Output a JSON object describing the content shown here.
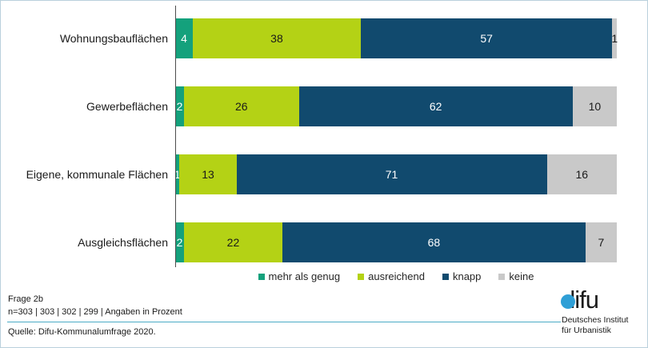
{
  "chart_data": {
    "type": "bar",
    "orientation": "horizontal",
    "stacked": true,
    "title": "",
    "categories": [
      "Wohnungsbauflächen",
      "Gewerbeflächen",
      "Eigene, kommunale Flächen",
      "Ausgleichsflächen"
    ],
    "series": [
      {
        "name": "mehr als genug",
        "color": "#14a17c",
        "text_color": "#ffffff",
        "values": [
          4,
          2,
          1,
          2
        ]
      },
      {
        "name": "ausreichend",
        "color": "#b4d215",
        "text_color": "#1a1a1a",
        "values": [
          38,
          26,
          13,
          22
        ]
      },
      {
        "name": "knapp",
        "color": "#114a6e",
        "text_color": "#ffffff",
        "values": [
          57,
          62,
          71,
          68
        ]
      },
      {
        "name": "keine",
        "color": "#c9c9c9",
        "text_color": "#1a1a1a",
        "values": [
          1,
          10,
          16,
          7
        ]
      }
    ],
    "value_unit": "percent",
    "xlim": [
      0,
      100
    ],
    "grid": false,
    "legend_position": "bottom"
  },
  "footer": {
    "question": "Frage 2b",
    "note": "n=303 | 303 | 302 | 299 | Angaben in Prozent",
    "source": "Quelle: Difu-Kommunalumfrage 2020."
  },
  "logo": {
    "wordmark": "difu",
    "subtitle_line1": "Deutsches Institut",
    "subtitle_line2": "für Urbanistik"
  },
  "colors": {
    "frame_border": "#bad0dc",
    "axis": "#4d4d4d",
    "separator": "#4bacc6",
    "logo_blue": "#2f9fd6"
  }
}
